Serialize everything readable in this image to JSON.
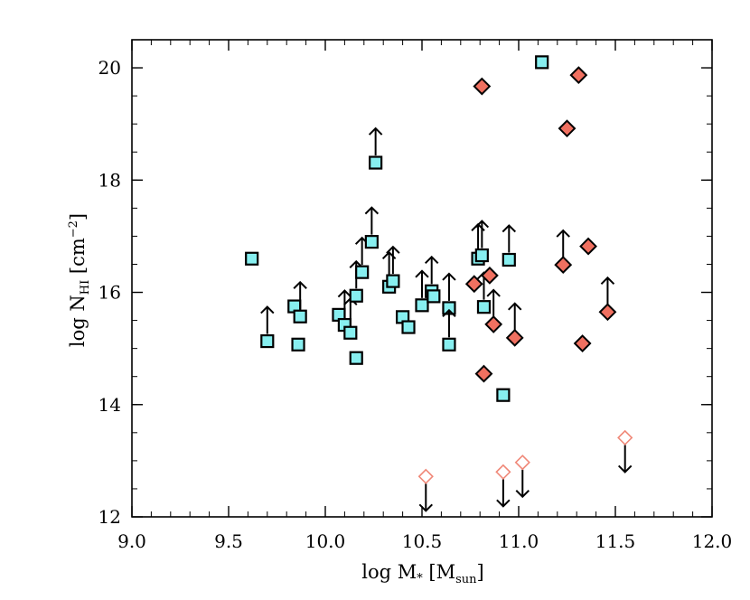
{
  "chart_data": {
    "type": "scatter",
    "title": "",
    "xlabel": {
      "main": "log M",
      "star": "*",
      "bracket_open": " [M",
      "sub": "sun",
      "bracket_close": "]"
    },
    "ylabel": {
      "main": "log N",
      "sub": "HI",
      "unit_open": " [cm",
      "sup": "−2",
      "unit_close": "]"
    },
    "xlim": [
      9.0,
      12.0
    ],
    "ylim": [
      12.0,
      20.5
    ],
    "x_ticks": [
      9.0,
      9.5,
      10.0,
      10.5,
      11.0,
      11.5,
      12.0
    ],
    "x_tick_labels": [
      "9.0",
      "9.5",
      "10.0",
      "10.5",
      "11.0",
      "11.5",
      "12.0"
    ],
    "y_ticks": [
      12,
      14,
      16,
      18,
      20
    ],
    "y_tick_labels": [
      "12",
      "14",
      "16",
      "18",
      "20"
    ],
    "colors": {
      "square": "#87eff0",
      "diamond": "#f07060",
      "open_diamond": "#f08878",
      "edge": "#000000"
    },
    "series": [
      {
        "name": "squares",
        "marker": "square",
        "points": [
          {
            "x": 9.62,
            "y": 16.6,
            "limit": "none"
          },
          {
            "x": 9.7,
            "y": 15.13,
            "limit": "lower"
          },
          {
            "x": 9.84,
            "y": 15.75,
            "limit": "none"
          },
          {
            "x": 9.86,
            "y": 15.07,
            "limit": "none"
          },
          {
            "x": 9.87,
            "y": 15.57,
            "limit": "lower"
          },
          {
            "x": 10.07,
            "y": 15.6,
            "limit": "none"
          },
          {
            "x": 10.1,
            "y": 15.42,
            "limit": "lower"
          },
          {
            "x": 10.13,
            "y": 15.28,
            "limit": "lower"
          },
          {
            "x": 10.16,
            "y": 14.83,
            "limit": "none"
          },
          {
            "x": 10.16,
            "y": 15.94,
            "limit": "lower"
          },
          {
            "x": 10.19,
            "y": 16.36,
            "limit": "lower"
          },
          {
            "x": 10.24,
            "y": 16.9,
            "limit": "lower"
          },
          {
            "x": 10.26,
            "y": 18.31,
            "limit": "lower"
          },
          {
            "x": 10.33,
            "y": 16.1,
            "limit": "lower"
          },
          {
            "x": 10.35,
            "y": 16.2,
            "limit": "lower"
          },
          {
            "x": 10.4,
            "y": 15.56,
            "limit": "none"
          },
          {
            "x": 10.43,
            "y": 15.38,
            "limit": "none"
          },
          {
            "x": 10.5,
            "y": 15.77,
            "limit": "lower"
          },
          {
            "x": 10.55,
            "y": 16.02,
            "limit": "lower"
          },
          {
            "x": 10.56,
            "y": 15.93,
            "limit": "none"
          },
          {
            "x": 10.64,
            "y": 15.72,
            "limit": "lower"
          },
          {
            "x": 10.64,
            "y": 15.07,
            "limit": "lower"
          },
          {
            "x": 10.79,
            "y": 16.6,
            "limit": "lower"
          },
          {
            "x": 10.81,
            "y": 16.66,
            "limit": "lower"
          },
          {
            "x": 10.82,
            "y": 15.74,
            "limit": "lower"
          },
          {
            "x": 10.92,
            "y": 14.17,
            "limit": "none"
          },
          {
            "x": 10.95,
            "y": 16.58,
            "limit": "lower"
          },
          {
            "x": 11.12,
            "y": 20.1,
            "limit": "none"
          }
        ]
      },
      {
        "name": "diamonds",
        "marker": "diamond",
        "points": [
          {
            "x": 10.81,
            "y": 19.67,
            "limit": "none"
          },
          {
            "x": 10.77,
            "y": 16.15,
            "limit": "none"
          },
          {
            "x": 10.82,
            "y": 14.55,
            "limit": "none"
          },
          {
            "x": 10.85,
            "y": 16.3,
            "limit": "none"
          },
          {
            "x": 10.87,
            "y": 15.43,
            "limit": "lower"
          },
          {
            "x": 10.98,
            "y": 15.19,
            "limit": "lower"
          },
          {
            "x": 11.23,
            "y": 16.49,
            "limit": "lower"
          },
          {
            "x": 11.25,
            "y": 18.92,
            "limit": "none"
          },
          {
            "x": 11.31,
            "y": 19.87,
            "limit": "none"
          },
          {
            "x": 11.33,
            "y": 15.09,
            "limit": "none"
          },
          {
            "x": 11.36,
            "y": 16.82,
            "limit": "none"
          },
          {
            "x": 11.46,
            "y": 15.65,
            "limit": "lower"
          }
        ]
      },
      {
        "name": "open_diamonds",
        "marker": "open_diamond",
        "points": [
          {
            "x": 10.52,
            "y": 12.72,
            "limit": "upper"
          },
          {
            "x": 10.92,
            "y": 12.8,
            "limit": "upper"
          },
          {
            "x": 11.02,
            "y": 12.97,
            "limit": "upper"
          },
          {
            "x": 11.55,
            "y": 13.41,
            "limit": "upper"
          }
        ]
      }
    ]
  }
}
